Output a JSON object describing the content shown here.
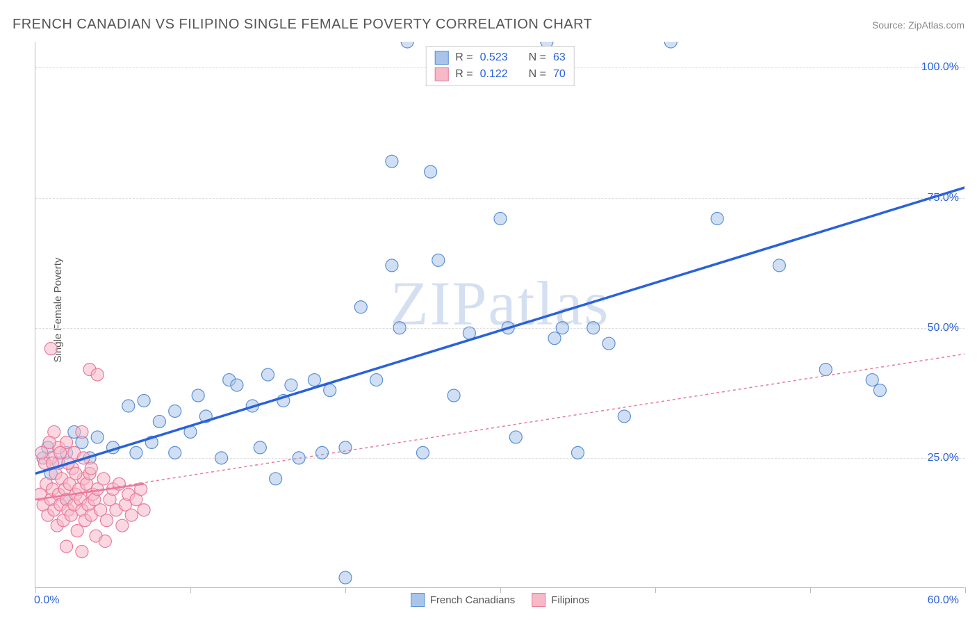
{
  "title": "FRENCH CANADIAN VS FILIPINO SINGLE FEMALE POVERTY CORRELATION CHART",
  "source": "Source: ZipAtlas.com",
  "watermark": "ZIPatlas",
  "y_axis_label": "Single Female Poverty",
  "chart": {
    "type": "scatter",
    "plot_background": "#ffffff",
    "border_color": "#bbbbbb",
    "grid_color": "#dddddd",
    "xlim": [
      0,
      60
    ],
    "ylim": [
      0,
      105
    ],
    "x_ticks": [
      0,
      10,
      20,
      30,
      40,
      50,
      60
    ],
    "x_tick_labels_shown": {
      "min": "0.0%",
      "max": "60.0%"
    },
    "y_gridlines": [
      25,
      50,
      75,
      100
    ],
    "y_tick_labels": [
      "25.0%",
      "50.0%",
      "75.0%",
      "100.0%"
    ],
    "marker_radius": 9,
    "marker_opacity": 0.55,
    "marker_stroke_width": 1.2,
    "series": [
      {
        "name": "French Canadians",
        "fill": "#a9c4ea",
        "stroke": "#5a8fd6",
        "trend": {
          "color": "#2962d9",
          "width": 3.5,
          "dash": "none",
          "x1": 0,
          "y1": 22,
          "x2": 60,
          "y2": 77
        },
        "points": [
          [
            0.5,
            25
          ],
          [
            0.8,
            27
          ],
          [
            1,
            22
          ],
          [
            1.5,
            24
          ],
          [
            2,
            26
          ],
          [
            2.5,
            30
          ],
          [
            3,
            28
          ],
          [
            3.5,
            25
          ],
          [
            4,
            29
          ],
          [
            5,
            27
          ],
          [
            6,
            35
          ],
          [
            6.5,
            26
          ],
          [
            7,
            36
          ],
          [
            7.5,
            28
          ],
          [
            8,
            32
          ],
          [
            9,
            34
          ],
          [
            9,
            26
          ],
          [
            10,
            30
          ],
          [
            10.5,
            37
          ],
          [
            11,
            33
          ],
          [
            12,
            25
          ],
          [
            12.5,
            40
          ],
          [
            13,
            39
          ],
          [
            14,
            35
          ],
          [
            14.5,
            27
          ],
          [
            15,
            41
          ],
          [
            15.5,
            21
          ],
          [
            16,
            36
          ],
          [
            16.5,
            39
          ],
          [
            17,
            25
          ],
          [
            18,
            40
          ],
          [
            18.5,
            26
          ],
          [
            19,
            38
          ],
          [
            20,
            27
          ],
          [
            21,
            54
          ],
          [
            22,
            40
          ],
          [
            23,
            62
          ],
          [
            23,
            82
          ],
          [
            23.5,
            50
          ],
          [
            24,
            105
          ],
          [
            25,
            26
          ],
          [
            25.5,
            80
          ],
          [
            26,
            63
          ],
          [
            27,
            37
          ],
          [
            28,
            49
          ],
          [
            30,
            71
          ],
          [
            30.5,
            50
          ],
          [
            31,
            29
          ],
          [
            33,
            105
          ],
          [
            33.5,
            48
          ],
          [
            34,
            50
          ],
          [
            35,
            26
          ],
          [
            36,
            50
          ],
          [
            37,
            47
          ],
          [
            38,
            33
          ],
          [
            41,
            105
          ],
          [
            44,
            71
          ],
          [
            48,
            62
          ],
          [
            51,
            42
          ],
          [
            54,
            40
          ],
          [
            54.5,
            38
          ],
          [
            20,
            2
          ],
          [
            2,
            17
          ]
        ]
      },
      {
        "name": "Filipinos",
        "fill": "#f7b8c8",
        "stroke": "#e87a9a",
        "trend": {
          "color": "#e87a9a",
          "width": 1.5,
          "dash": "4 4",
          "x1": 0,
          "y1": 17,
          "x2": 60,
          "y2": 45,
          "solid_segment": {
            "x1": 0,
            "y1": 17,
            "x2": 7,
            "y2": 20,
            "width": 2.5
          }
        },
        "points": [
          [
            0.3,
            18
          ],
          [
            0.5,
            16
          ],
          [
            0.7,
            20
          ],
          [
            0.8,
            14
          ],
          [
            1,
            17
          ],
          [
            1.1,
            19
          ],
          [
            1.2,
            15
          ],
          [
            1.3,
            22
          ],
          [
            1.4,
            12
          ],
          [
            1.5,
            18
          ],
          [
            1.6,
            16
          ],
          [
            1.7,
            21
          ],
          [
            1.8,
            13
          ],
          [
            1.9,
            19
          ],
          [
            2,
            17
          ],
          [
            2.1,
            15
          ],
          [
            2.2,
            20
          ],
          [
            2.3,
            14
          ],
          [
            2.4,
            23
          ],
          [
            2.5,
            16
          ],
          [
            2.6,
            18
          ],
          [
            2.7,
            11
          ],
          [
            2.8,
            19
          ],
          [
            2.9,
            17
          ],
          [
            3,
            15
          ],
          [
            3.1,
            21
          ],
          [
            3.2,
            13
          ],
          [
            3.3,
            20
          ],
          [
            3.4,
            16
          ],
          [
            3.5,
            22
          ],
          [
            3.6,
            14
          ],
          [
            3.7,
            18
          ],
          [
            3.8,
            17
          ],
          [
            3.9,
            10
          ],
          [
            4,
            19
          ],
          [
            4.2,
            15
          ],
          [
            4.4,
            21
          ],
          [
            4.6,
            13
          ],
          [
            4.8,
            17
          ],
          [
            5,
            19
          ],
          [
            5.2,
            15
          ],
          [
            5.4,
            20
          ],
          [
            5.6,
            12
          ],
          [
            5.8,
            16
          ],
          [
            6,
            18
          ],
          [
            6.2,
            14
          ],
          [
            6.5,
            17
          ],
          [
            6.8,
            19
          ],
          [
            7,
            15
          ],
          [
            1,
            25
          ],
          [
            1.5,
            27
          ],
          [
            2,
            28
          ],
          [
            2.5,
            26
          ],
          [
            3,
            30
          ],
          [
            1,
            46
          ],
          [
            3.5,
            42
          ],
          [
            4,
            41
          ],
          [
            2,
            8
          ],
          [
            3,
            7
          ],
          [
            4.5,
            9
          ],
          [
            1.2,
            30
          ],
          [
            0.6,
            24
          ],
          [
            0.4,
            26
          ],
          [
            0.9,
            28
          ],
          [
            1.1,
            24
          ],
          [
            1.6,
            26
          ],
          [
            2.1,
            24
          ],
          [
            2.6,
            22
          ],
          [
            3.1,
            25
          ],
          [
            3.6,
            23
          ]
        ]
      }
    ],
    "top_legend": [
      {
        "swatch_fill": "#a9c4ea",
        "swatch_stroke": "#5a8fd6",
        "r_label": "R =",
        "r_value": "0.523",
        "n_label": "N =",
        "n_value": "63"
      },
      {
        "swatch_fill": "#f7b8c8",
        "swatch_stroke": "#e87a9a",
        "r_label": "R =",
        "r_value": "0.122",
        "n_label": "N =",
        "n_value": "70"
      }
    ],
    "bottom_legend": [
      {
        "fill": "#a9c4ea",
        "stroke": "#5a8fd6",
        "label": "French Canadians"
      },
      {
        "fill": "#f7b8c8",
        "stroke": "#e87a9a",
        "label": "Filipinos"
      }
    ]
  },
  "axis_label_color": "#2962d9",
  "axis_label_fontsize": 16,
  "title_color": "#555555",
  "title_fontsize": 20
}
